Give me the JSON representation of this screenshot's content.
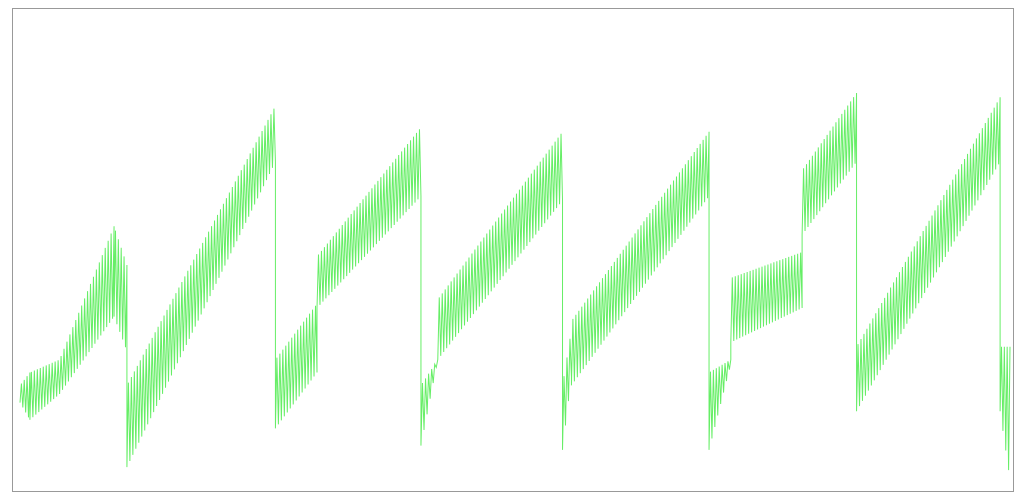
{
  "chart_data": {
    "type": "line",
    "title": "",
    "xlabel": "",
    "ylabel": "",
    "grid": false,
    "legend": "none",
    "axes_visible": false,
    "xlim": [
      0,
      1000
    ],
    "ylim": [
      0,
      1
    ],
    "colors": {
      "line": "#66ee66",
      "frame": "#999999",
      "background": "#ffffff"
    },
    "series": [
      {
        "values_envelope": [
          {
            "x": [
              0,
              10
            ],
            "low": [
              0.18,
              0.14
            ],
            "high": [
              0.22,
              0.25
            ]
          },
          {
            "x": [
              10,
              40
            ],
            "low": [
              0.14,
              0.2
            ],
            "high": [
              0.25,
              0.28
            ]
          },
          {
            "x": [
              40,
              95
            ],
            "low": [
              0.2,
              0.38
            ],
            "high": [
              0.28,
              0.59
            ]
          },
          {
            "x": [
              95,
              108
            ],
            "low": [
              0.38,
              0.3
            ],
            "high": [
              0.59,
              0.5
            ]
          },
          {
            "x": [
              108,
              258
            ],
            "low": [
              0.03,
              0.74
            ],
            "high": [
              0.22,
              0.87
            ]
          },
          {
            "x": [
              258,
              300
            ],
            "low": [
              0.12,
              0.25
            ],
            "high": [
              0.28,
              0.41
            ]
          },
          {
            "x": [
              300,
              405
            ],
            "low": [
              0.4,
              0.66
            ],
            "high": [
              0.52,
              0.82
            ]
          },
          {
            "x": [
              405,
              422
            ],
            "low": [
              0.08,
              0.28
            ],
            "high": [
              0.22,
              0.28
            ]
          },
          {
            "x": [
              422,
              548
            ],
            "low": [
              0.28,
              0.65
            ],
            "high": [
              0.42,
              0.81
            ]
          },
          {
            "x": [
              548,
              557
            ],
            "low": [
              0.07,
              0.24
            ],
            "high": [
              0.22,
              0.35
            ]
          },
          {
            "x": [
              557,
              696
            ],
            "low": [
              0.22,
              0.66
            ],
            "high": [
              0.37,
              0.81
            ]
          },
          {
            "x": [
              696,
              718
            ],
            "low": [
              0.07,
              0.27
            ],
            "high": [
              0.25,
              0.28
            ]
          },
          {
            "x": [
              718,
              790
            ],
            "low": [
              0.32,
              0.4
            ],
            "high": [
              0.47,
              0.53
            ]
          },
          {
            "x": [
              790,
              845
            ],
            "low": [
              0.57,
              0.74
            ],
            "high": [
              0.72,
              0.9
            ]
          },
          {
            "x": [
              845,
              990
            ],
            "low": [
              0.16,
              0.74
            ],
            "high": [
              0.31,
              0.89
            ]
          },
          {
            "x": [
              990,
              1000
            ],
            "low": [
              0.16,
              0.0
            ],
            "high": [
              0.31,
              0.31
            ]
          }
        ]
      }
    ]
  }
}
